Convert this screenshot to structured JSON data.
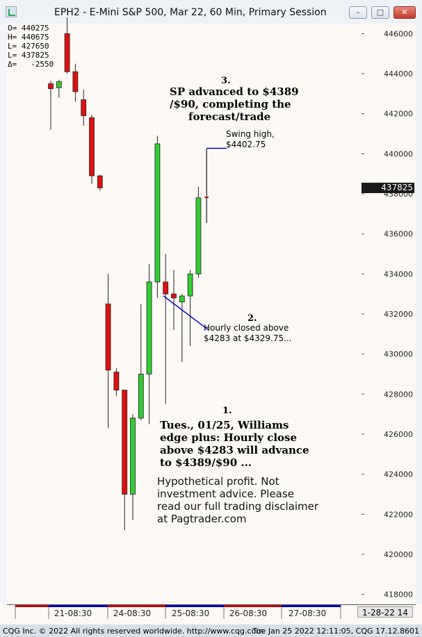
{
  "window": {
    "title": "EPH2 - E-Mini S&P 500, Mar 22, 60 Min, Primary Session",
    "min_glyph": "–",
    "max_glyph": "□",
    "close_glyph": "✕"
  },
  "ohlc_box": {
    "open": "O= 440275",
    "high": "H= 440675",
    "low": "L= 427650",
    "last": "L= 437825",
    "delta": "Δ=   -2550"
  },
  "last_price_tag": "437825",
  "date_tag": "1-28-22  14",
  "annotations": {
    "a3_num": "3.",
    "a3_line1": "SP advanced to $4389",
    "a3_line2": "/$90, completing the",
    "a3_line3": "forecast/trade",
    "swing_line1": "Swing high,",
    "swing_line2": "$4402.75",
    "a2_num": "2.",
    "a2_line1": "Hourly closed above",
    "a2_line2": "$4283 at  $4329.75...",
    "a1_num": "1.",
    "a1_line1": "Tues., 01/25, Williams",
    "a1_line2": "edge plus: Hourly close",
    "a1_line3": "above $4283 will advance",
    "a1_line4": "to $4389/$90 ...",
    "disc_line1": "Hypothetical profit. Not",
    "disc_line2": "investment advice. Please",
    "disc_line3": "read our full trading disclaimer",
    "disc_line4": "at Pagtrader.com"
  },
  "footer": {
    "left": "CQG Inc. © 2022 All rights reserved worldwide. http://www.cqg.com",
    "right": "Tue Jan 25 2022 12:11:05, CQG 17.12.8601"
  },
  "colors": {
    "up": "#33cc33",
    "down": "#dd1111",
    "line": "#0000cc"
  },
  "chart_data": {
    "type": "candlestick",
    "title": "EPH2 - E-Mini S&P 500, Mar 22, 60 Min, Primary Session",
    "ylim": [
      417500,
      446500
    ],
    "y_ticks": [
      "446000",
      "444000",
      "442000",
      "440000",
      "438000",
      "436000",
      "434000",
      "432000",
      "430000",
      "428000",
      "426000",
      "424000",
      "422000",
      "420000",
      "418000"
    ],
    "x_ticks": [
      "21-08:30",
      "24-08:30",
      "25-08:30",
      "26-08:30",
      "27-08:30"
    ],
    "bars": [
      {
        "o": 443500,
        "h": 443650,
        "l": 441200,
        "c": 443250
      },
      {
        "o": 443300,
        "h": 443700,
        "l": 442800,
        "c": 443600
      },
      {
        "o": 446000,
        "h": 446800,
        "l": 444000,
        "c": 444100
      },
      {
        "o": 444100,
        "h": 444500,
        "l": 442600,
        "c": 443100
      },
      {
        "o": 442700,
        "h": 443200,
        "l": 441400,
        "c": 441900
      },
      {
        "o": 441800,
        "h": 441950,
        "l": 438500,
        "c": 438900
      },
      {
        "o": 438900,
        "h": 438950,
        "l": 438150,
        "c": 438300
      },
      {
        "o": 432500,
        "h": 434000,
        "l": 426300,
        "c": 429200
      },
      {
        "o": 429100,
        "h": 429300,
        "l": 427900,
        "c": 428200
      },
      {
        "o": 428200,
        "h": 428200,
        "l": 421200,
        "c": 423000
      },
      {
        "o": 423000,
        "h": 427000,
        "l": 421700,
        "c": 426800
      },
      {
        "o": 426800,
        "h": 432500,
        "l": 426700,
        "c": 429000
      },
      {
        "o": 429000,
        "h": 434500,
        "l": 426500,
        "c": 433600
      },
      {
        "o": 433600,
        "h": 440900,
        "l": 432800,
        "c": 440500
      },
      {
        "o": 433600,
        "h": 435000,
        "l": 427500,
        "c": 433000
      },
      {
        "o": 433000,
        "h": 434200,
        "l": 431200,
        "c": 432800
      },
      {
        "o": 432600,
        "h": 433000,
        "l": 429600,
        "c": 432900
      },
      {
        "o": 432900,
        "h": 434200,
        "l": 430400,
        "c": 434000
      },
      {
        "o": 434000,
        "h": 438350,
        "l": 433800,
        "c": 437800
      },
      {
        "o": 437825,
        "h": 440275,
        "l": 436550,
        "c": 437825
      }
    ],
    "annotation_line_2": {
      "x1_bar": 14,
      "y1": 432900,
      "y2": 431200
    },
    "swing_high": 440275
  }
}
